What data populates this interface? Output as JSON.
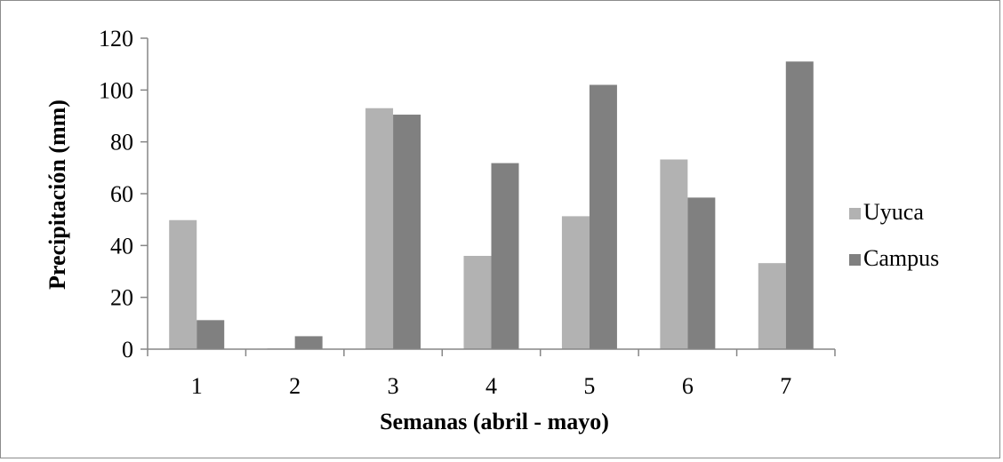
{
  "chart_data": {
    "type": "bar",
    "categories": [
      "1",
      "2",
      "3",
      "4",
      "5",
      "6",
      "7"
    ],
    "series": [
      {
        "name": "Uyuca",
        "color": "#b2b2b2",
        "values": [
          49.8,
          0.3,
          93.0,
          36.0,
          51.3,
          73.2,
          33.2
        ]
      },
      {
        "name": "Campus",
        "color": "#808080",
        "values": [
          11.2,
          5.0,
          90.5,
          71.8,
          102.0,
          58.5,
          111.0
        ]
      }
    ],
    "xlabel": "Semanas (abril - mayo)",
    "ylabel": "Precipitación (mm)",
    "ylim": [
      0,
      120
    ],
    "yticks": [
      "0",
      "20",
      "40",
      "60",
      "80",
      "100",
      "120"
    ],
    "grid": false,
    "legend_position": "right"
  }
}
